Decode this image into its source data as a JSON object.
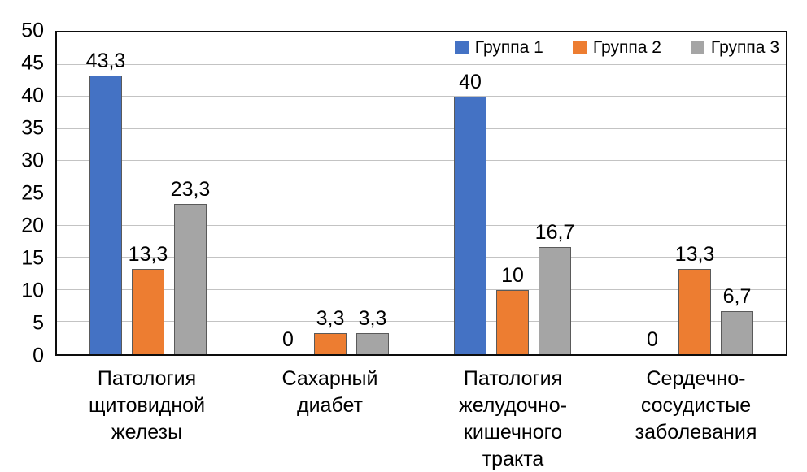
{
  "chart_data": {
    "type": "bar",
    "title": "",
    "xlabel": "",
    "ylabel": "",
    "ylim": [
      0,
      50
    ],
    "ytick_step": 5,
    "yticks": [
      0,
      5,
      10,
      15,
      20,
      25,
      30,
      35,
      40,
      45,
      50
    ],
    "grid": true,
    "legend_position": "top-right-inside",
    "categories": [
      "Патология\nщитовидной железы",
      "Сахарный\nдиабет",
      "Патология\nжелудочно-кишечного\nтракта",
      "Сердечно-\nсосудистые\nзаболевания"
    ],
    "series": [
      {
        "name": "Группа 1",
        "color": "#4472C4",
        "values": [
          43.3,
          0,
          40,
          0
        ],
        "labels": [
          "43,3",
          "0",
          "40",
          "0"
        ]
      },
      {
        "name": "Группа 2",
        "color": "#ED7D31",
        "values": [
          13.3,
          3.3,
          10,
          13.3
        ],
        "labels": [
          "13,3",
          "3,3",
          "10",
          "13,3"
        ]
      },
      {
        "name": "Группа 3",
        "color": "#A5A5A5",
        "values": [
          23.3,
          3.3,
          16.7,
          6.7
        ],
        "labels": [
          "23,3",
          "3,3",
          "16,7",
          "6,7"
        ]
      }
    ]
  },
  "style_colors": {
    "plot_border": "#0d0d0d",
    "gridline": "#c3c3c3",
    "bar_border": "#5a5a5a",
    "text": "#000000"
  }
}
